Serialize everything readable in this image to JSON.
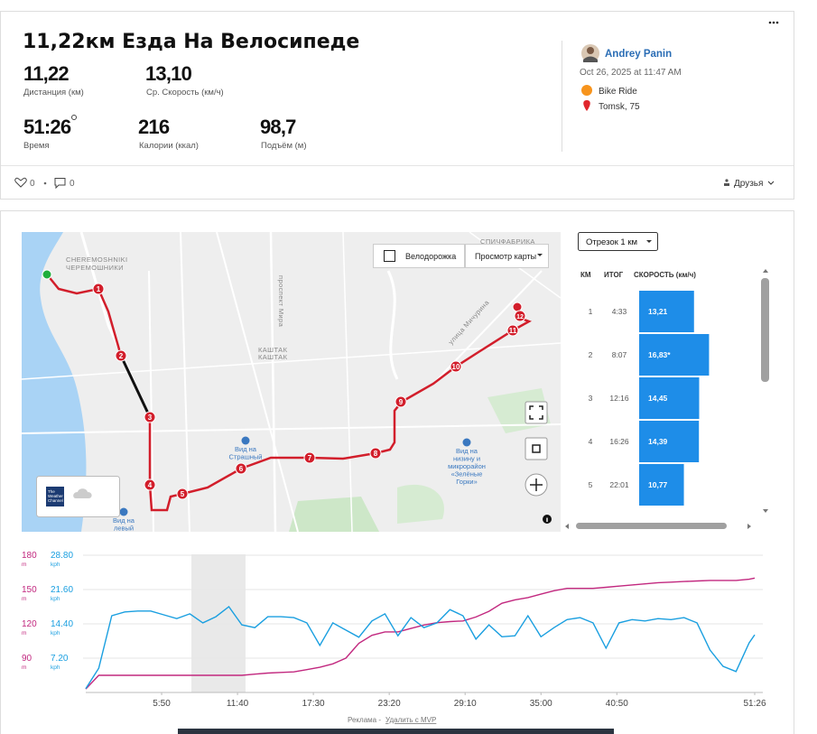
{
  "header": {
    "title": "11,22км Езда На Велосипеде",
    "stats": [
      {
        "value": "11,22",
        "label": "Дистанция (км)"
      },
      {
        "value": "13,10",
        "label": "Ср. Скорость (км/ч)"
      },
      {
        "value": "51:26",
        "label": "Время"
      },
      {
        "value": "216",
        "label": "Калории (ккал)"
      },
      {
        "value": "98,7",
        "label": "Подъём (м)"
      }
    ]
  },
  "athlete": {
    "name": "Andrey Panin",
    "date": "Oct 26, 2025 at 11:47 AM",
    "sport": "Bike Ride",
    "location": "Tomsk, 75"
  },
  "social": {
    "kudos": "0",
    "comments": "0",
    "visibility": "Друзья"
  },
  "map": {
    "buttons": [
      "Велодорожка",
      "Просмотр карты"
    ],
    "markers": [
      "1",
      "2",
      "3",
      "4",
      "5",
      "6",
      "7",
      "8",
      "9",
      "10",
      "11",
      "12"
    ],
    "labels": [
      "CHEREMOSHNIKI",
      "ЧЕРЕМОШНИКИ",
      "проспект Мира",
      "КАШТАК",
      "КАШТАК",
      "улица Мичурина",
      "СПИЧФАБРИКА"
    ],
    "pois": [
      [
        "Вид на",
        "Страшный"
      ],
      [
        "Вид на",
        "низину и",
        "микрорайон",
        "«Зелёные",
        "Горки»"
      ],
      [
        "Вид на",
        "левый"
      ]
    ],
    "weather": [
      "The",
      "Weather",
      "Channel"
    ]
  },
  "splits": {
    "selector": "Отрезок 1 км",
    "headers": [
      "КМ",
      "ИТОГ",
      "СКОРОСТЬ (км/ч)"
    ],
    "rows": [
      {
        "km": "1",
        "total": "4:33",
        "speed": {
          "value": 13.21,
          "label": "13,21"
        }
      },
      {
        "km": "2",
        "total": "8:07",
        "speed": {
          "value": 16.83,
          "label": "16,83*"
        }
      },
      {
        "km": "3",
        "total": "12:16",
        "speed": {
          "value": 14.45,
          "label": "14,45"
        }
      },
      {
        "km": "4",
        "total": "16:26",
        "speed": {
          "value": 14.39,
          "label": "14,39"
        }
      },
      {
        "km": "5",
        "total": "22:01",
        "speed": {
          "value": 10.77,
          "label": "10,77"
        }
      }
    ]
  },
  "chart_data": {
    "type": "line",
    "x": [
      0,
      60,
      120,
      180,
      240,
      300,
      360,
      420,
      480,
      540,
      600,
      660,
      720,
      780,
      840,
      900,
      960,
      1020,
      1080,
      1140,
      1200,
      1260,
      1320,
      1380,
      1440,
      1500,
      1560,
      1620,
      1680,
      1740,
      1800,
      1860,
      1920,
      1980,
      2040,
      2100,
      2160,
      2220,
      2280,
      2340,
      2400,
      2460,
      2520,
      2580,
      2640,
      2700,
      2760,
      2820,
      2880,
      2940,
      3000,
      3060,
      3086
    ],
    "xlim": [
      0,
      3086
    ],
    "xticks": [
      {
        "value": 350,
        "label": "5:50"
      },
      {
        "value": 700,
        "label": "11:40"
      },
      {
        "value": 1050,
        "label": "17:30"
      },
      {
        "value": 1400,
        "label": "23:20"
      },
      {
        "value": 1750,
        "label": "29:10"
      },
      {
        "value": 2100,
        "label": "35:00"
      },
      {
        "value": 2450,
        "label": "40:50"
      },
      {
        "value": 3086,
        "label": "51:26"
      }
    ],
    "ylim": [
      60,
      180
    ],
    "yticks": [
      90,
      120,
      150,
      180
    ],
    "y_unit": "m",
    "y2lim": [
      0,
      28.8
    ],
    "y2ticks": [
      {
        "value": 7.2,
        "label": "7.20"
      },
      {
        "value": 14.4,
        "label": "14.40"
      },
      {
        "value": 21.6,
        "label": "21.60"
      },
      {
        "value": 28.8,
        "label": "28.80"
      }
    ],
    "y2_unit": "kph",
    "grid": true,
    "series": [
      {
        "name": "elevation",
        "color": "#c2287f",
        "values": [
          63,
          75,
          75,
          75,
          75,
          75,
          75,
          75,
          75,
          75,
          75,
          75,
          75,
          76,
          77,
          77.5,
          78,
          80,
          82,
          85,
          90,
          103,
          110,
          113,
          113,
          116,
          119,
          121,
          122,
          122.5,
          126,
          131,
          138,
          141,
          143,
          146,
          149,
          151,
          151,
          151,
          152,
          153,
          154,
          155,
          156,
          156.5,
          157,
          157.5,
          158,
          158,
          158,
          159,
          160
        ]
      },
      {
        "name": "speed",
        "axis": "y2",
        "color": "#1a9fe0",
        "values": [
          0.8,
          5.1,
          16.1,
          16.9,
          17.1,
          17.1,
          16.3,
          15.5,
          16.5,
          14.6,
          15.9,
          18.0,
          14.2,
          13.6,
          15.9,
          15.9,
          15.7,
          14.6,
          9.9,
          14.6,
          13.1,
          11.6,
          15.0,
          16.5,
          11.9,
          15.7,
          13.6,
          14.6,
          17.4,
          16.1,
          11.2,
          14.2,
          11.7,
          11.9,
          16.1,
          11.7,
          13.6,
          15.3,
          15.7,
          14.6,
          9.3,
          14.6,
          15.3,
          15.0,
          15.5,
          15.3,
          15.7,
          14.6,
          8.9,
          5.5,
          4.4,
          10.4,
          12.1
        ]
      }
    ]
  },
  "ad": {
    "label": "Реклама - ",
    "link": "Удалить с MVP"
  }
}
